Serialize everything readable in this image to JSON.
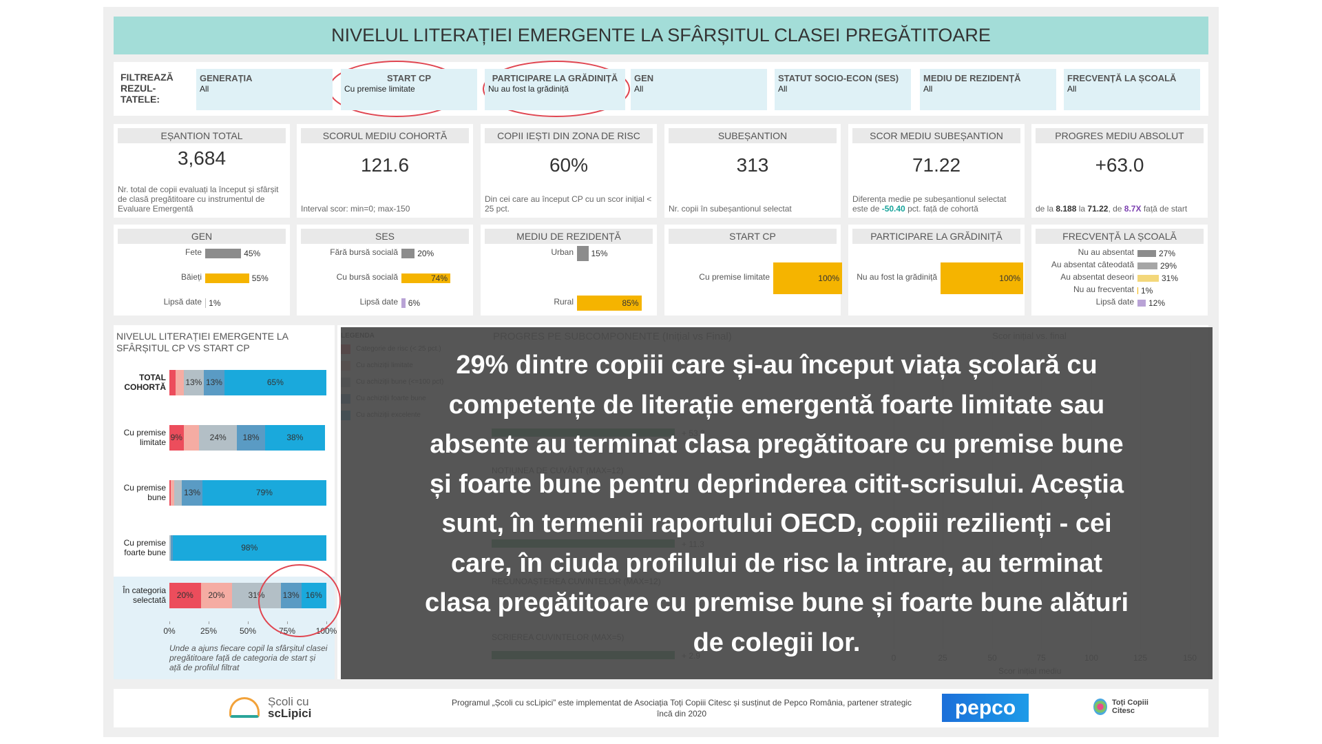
{
  "header": {
    "title": "NIVELUL LITERAȚIEI EMERGENTE LA SFÂRȘITUL CLASEI PREGĂTITOARE"
  },
  "filters": {
    "label": "FILTREAZĂ REZUL- TATELE:",
    "items": [
      {
        "name": "GENERAȚIA",
        "value": "All"
      },
      {
        "name": "START CP",
        "value": "Cu premise limitate"
      },
      {
        "name": "PARTICIPARE LA GRĂDINIȚĂ",
        "value": "Nu au fost la grădiniță"
      },
      {
        "name": "GEN",
        "value": "All"
      },
      {
        "name": "STATUT SOCIO-ECON (SES)",
        "value": "All"
      },
      {
        "name": "MEDIU DE REZIDENȚĂ",
        "value": "All"
      },
      {
        "name": "FRECVENȚĂ LA ȘCOALĂ",
        "value": "All"
      }
    ]
  },
  "kpis": [
    {
      "title": "EȘANTION TOTAL",
      "value": "3,684",
      "note": [
        {
          "text": "Nr. total de copii evaluați la început și sfârșit de clasă pregătitoare cu instrumentul de Evaluare Emergentă"
        }
      ]
    },
    {
      "title": "SCORUL MEDIU COHORTĂ",
      "value": "121.6",
      "note": [
        {
          "text": "Interval scor: min=0; max-150"
        }
      ]
    },
    {
      "title": "COPII IEȘTI DIN ZONA DE RISC",
      "value": "60%",
      "note": [
        {
          "text": "Din cei care au început CP cu un scor inițial < 25 pct."
        }
      ]
    },
    {
      "title": "SUBEȘANTION",
      "value": "313",
      "note": [
        {
          "text": "Nr. copii în subeșantionul selectat"
        }
      ]
    },
    {
      "title": "SCOR MEDIU SUBEȘANTION",
      "value": "71.22",
      "note": [
        {
          "text": "Diferența medie pe subeșantionul selectat este de "
        },
        {
          "text": "-50.40",
          "color": "#16a39a",
          "bold": true
        },
        {
          "text": " pct. față de cohortă"
        }
      ]
    },
    {
      "title": "PROGRES MEDIU ABSOLUT",
      "value": "+63.0",
      "note": [
        {
          "text": "de la "
        },
        {
          "text": "8.188",
          "color": "#333333",
          "bold": true
        },
        {
          "text": " la "
        },
        {
          "text": "71.22",
          "color": "#333333",
          "bold": true
        },
        {
          "text": ", de "
        },
        {
          "text": "8.7X",
          "color": "#7b3fb0",
          "bold": true
        },
        {
          "text": " față de start"
        }
      ]
    }
  ],
  "mini_charts": [
    {
      "title": "GEN",
      "rows": [
        {
          "label": "Fete",
          "value": 45,
          "value_label": "45%",
          "color": "#8c8c8c"
        },
        {
          "label": "Băieți",
          "value": 55,
          "value_label": "55%",
          "color": "#f5b400"
        },
        {
          "label": "Lipsă date",
          "value": 1,
          "value_label": "1%",
          "color": "#bdbdbd"
        }
      ]
    },
    {
      "title": "SES",
      "rows": [
        {
          "label": "Fără bursă socială",
          "value": 20,
          "value_label": "20%",
          "color": "#8c8c8c"
        },
        {
          "label": "Cu bursă socială",
          "value": 74,
          "value_label": "74%",
          "color": "#f5b400"
        },
        {
          "label": "Lipsă date",
          "value": 6,
          "value_label": "6%",
          "color": "#b9a3d6"
        }
      ]
    },
    {
      "title": "MEDIU DE REZIDENȚĂ",
      "rows": [
        {
          "label": "Urban",
          "value": 15,
          "value_label": "15%",
          "color": "#8c8c8c"
        },
        {
          "label": "Rural",
          "value": 85,
          "value_label": "85%",
          "color": "#f5b400"
        }
      ]
    },
    {
      "title": "START CP",
      "rows": [
        {
          "label": "Cu premise limitate",
          "value": 100,
          "value_label": "100%",
          "color": "#f5b400"
        }
      ]
    },
    {
      "title": "PARTICIPARE LA GRĂDINIȚĂ",
      "rows": [
        {
          "label": "Nu au fost la grădiniță",
          "value": 100,
          "value_label": "100%",
          "color": "#f5b400"
        }
      ]
    },
    {
      "title": "FRECVENȚĂ LA ȘCOALĂ",
      "rows": [
        {
          "label": "Nu au absentat",
          "value": 27,
          "value_label": "27%",
          "color": "#8c8c8c"
        },
        {
          "label": "Au absentat câteodată",
          "value": 29,
          "value_label": "29%",
          "color": "#a6a6a6"
        },
        {
          "label": "Au absentat deseori",
          "value": 31,
          "value_label": "31%",
          "color": "#f3d77a"
        },
        {
          "label": "Nu au frecventat",
          "value": 1,
          "value_label": "1%",
          "color": "#f5b400"
        },
        {
          "label": "Lipsă date",
          "value": 12,
          "value_label": "12%",
          "color": "#b9a3d6"
        }
      ]
    }
  ],
  "chart_data": {
    "type": "stacked_bar",
    "title": "NIVELUL LITERAȚIEI EMERGENTE LA SFÂRȘITUL CP VS START CP",
    "categories": [
      "TOTAL COHORTĂ",
      "Cu premise limitate",
      "Cu premise bune",
      "Cu premise foarte bune",
      "În categoria selectată"
    ],
    "series": [
      {
        "name": "Categorie de risc (< 25 pct.)",
        "color": "#ec4d5c",
        "values": [
          4,
          9,
          1,
          0,
          20
        ],
        "value_labels": [
          null,
          "9%",
          null,
          null,
          "20%"
        ]
      },
      {
        "name": "Cu achiziții limitate",
        "color": "#f5aca3",
        "values": [
          5,
          10,
          2,
          0,
          20
        ],
        "value_labels": [
          null,
          null,
          null,
          null,
          "20%"
        ]
      },
      {
        "name": "Cu achiziții bune (<=100 pct)",
        "color": "#b3bfc6",
        "values": [
          13,
          24,
          5,
          1,
          31
        ],
        "value_labels": [
          "13%",
          "24%",
          null,
          null,
          "31%"
        ]
      },
      {
        "name": "Cu achiziții foarte bune",
        "color": "#5a9bc4",
        "values": [
          13,
          18,
          13,
          1,
          13
        ],
        "value_labels": [
          "13%",
          "18%",
          "13%",
          null,
          "13%"
        ]
      },
      {
        "name": "Cu achiziții excelente",
        "color": "#1aa9dc",
        "values": [
          65,
          38,
          79,
          98,
          16
        ],
        "value_labels": [
          "65%",
          "38%",
          "79%",
          "98%",
          "16%"
        ]
      }
    ],
    "xlim": [
      0,
      100
    ],
    "xticks": [
      {
        "value": 0,
        "label": "0%"
      },
      {
        "value": 25,
        "label": "25%"
      },
      {
        "value": 50,
        "label": "50%"
      },
      {
        "value": 75,
        "label": "75%"
      },
      {
        "value": 100,
        "label": "100%"
      }
    ],
    "legend_title": "LEGENDA",
    "caption": "Unde a ajuns fiecare copil la sfârșitul clasei pregătitoare față de categoria de start și ață de profilul filtrat"
  },
  "hidden_panels": {
    "progress_title": "PROGRES PE SUBCOMPONENTE (Inițial vs Final)",
    "progress_items": [
      {
        "label": "+ 53.3"
      },
      {
        "label": "NOȚIUNEA DE CUVÂNT (MAX=12)"
      },
      {
        "label": "+ 11.3"
      },
      {
        "label": "RECUNOAȘTEREA CUVINTELOR (MAX=12)"
      },
      {
        "label": "SCRIEREA CUVINTELOR (MAX=5)"
      },
      {
        "label": "+ 2.9"
      }
    ],
    "scatter_title": "Scor inițial vs. final",
    "scatter_ticks": [
      0,
      25,
      50,
      75,
      100,
      125,
      150
    ],
    "scatter_xlabel": "Scor inițial mediu"
  },
  "overlay": {
    "lines": [
      "29% dintre copiii care și-au început viața școlară cu",
      "competențe de literație emergentă foarte limitate sau",
      "absente au terminat clasa pregătitoare cu premise bune",
      "și foarte bune pentru deprinderea citit-scrisului. Aceștia",
      "sunt, în termenii raportului OECD, copiii rezilienți - cei",
      "care, în ciuda profilului de risc la intrare, au terminat",
      "clasa pregătitoare cu premise bune și foarte bune alături",
      "de colegii lor."
    ]
  },
  "footer": {
    "logo_left": [
      "Școli cu",
      "scLipici"
    ],
    "program": "Programul „Școli cu scLipici” este implementat de Asociația Toți Copiii Citesc și susținut de Pepco România, partener strategic încă din 2020",
    "pepco": "pepco",
    "logo_right": [
      "Toți Copiii",
      "Citesc"
    ]
  }
}
